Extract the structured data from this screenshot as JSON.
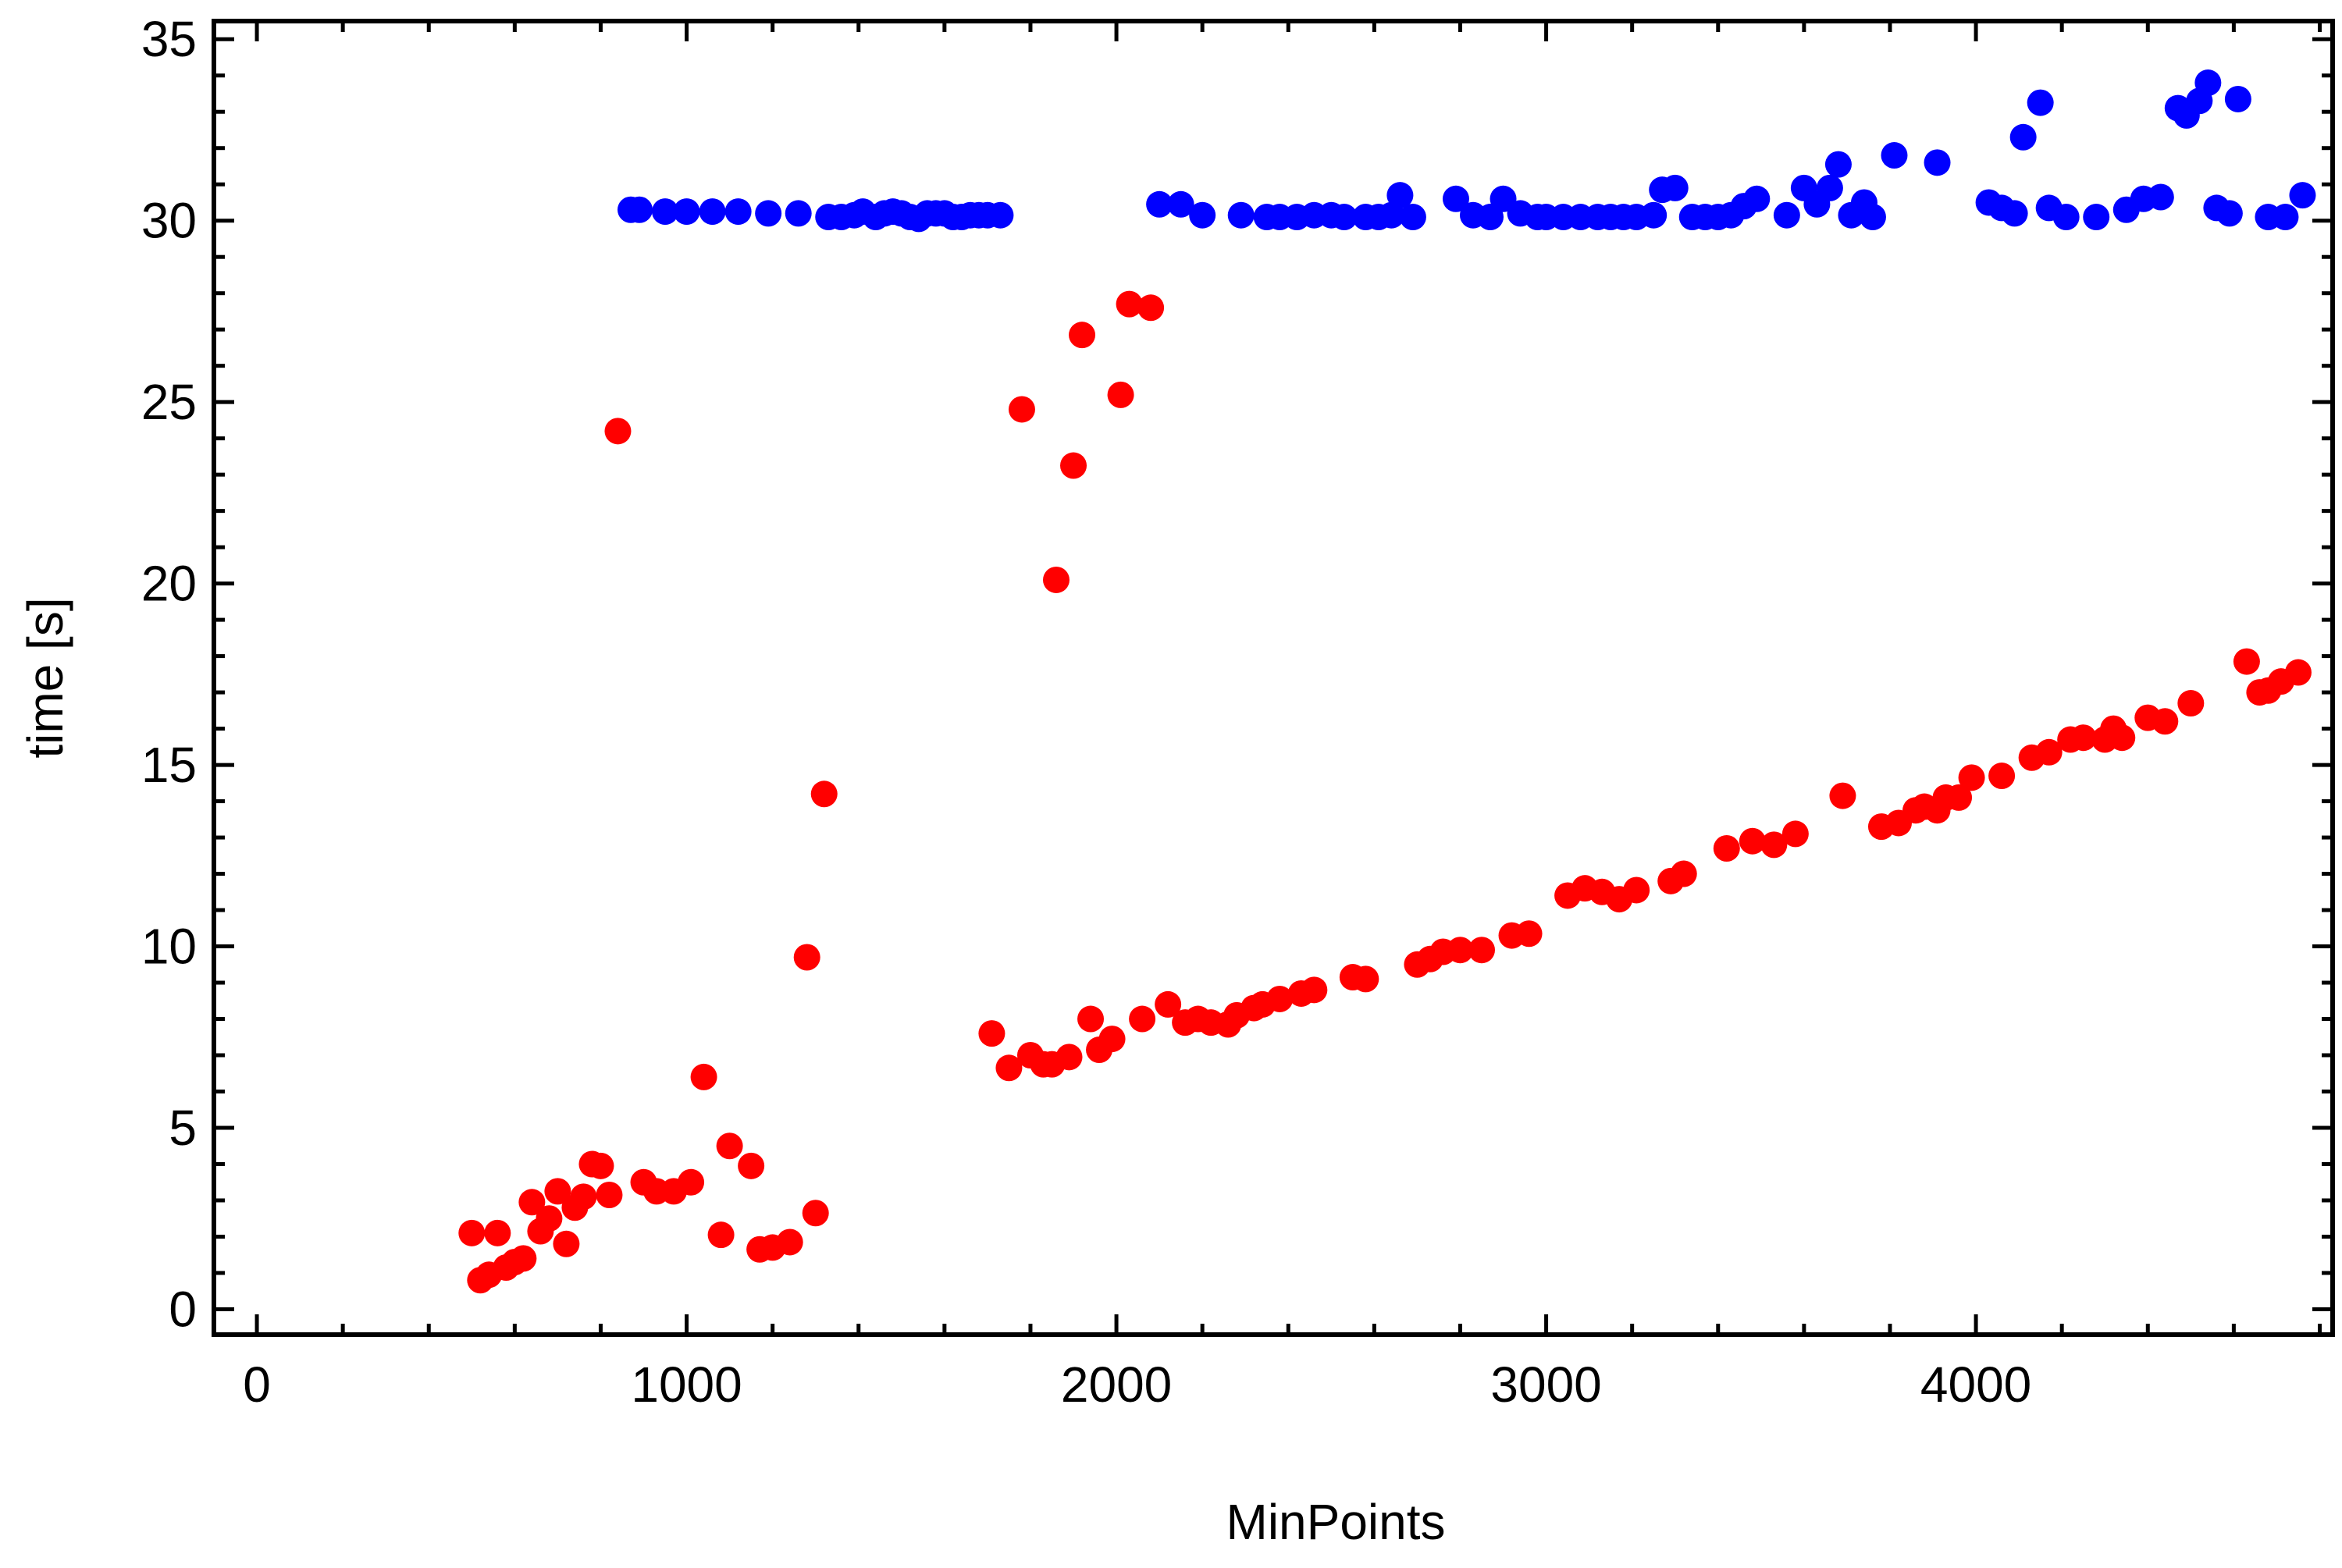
{
  "chart_data": {
    "type": "scatter",
    "title": "",
    "xlabel": "MinPoints",
    "ylabel": "time [s]",
    "xlim": [
      -100,
      4830
    ],
    "ylim": [
      -0.7,
      35.5
    ],
    "xticks": [
      0,
      1000,
      2000,
      3000,
      4000
    ],
    "xtick_labels": [
      "0",
      "1000",
      "2000",
      "3000",
      "4000"
    ],
    "yticks": [
      0,
      5,
      10,
      15,
      20,
      25,
      30,
      35
    ],
    "ytick_labels": [
      "0",
      "5",
      "10",
      "15",
      "20",
      "25",
      "30",
      "35"
    ],
    "grid": false,
    "legend": "none",
    "series": [
      {
        "color": "#0000ff",
        "points": [
          [
            870,
            30.3
          ],
          [
            890,
            30.3
          ],
          [
            950,
            30.25
          ],
          [
            1000,
            30.25
          ],
          [
            1060,
            30.25
          ],
          [
            1120,
            30.25
          ],
          [
            1190,
            30.2
          ],
          [
            1260,
            30.2
          ],
          [
            1330,
            30.1
          ],
          [
            1360,
            30.1
          ],
          [
            1390,
            30.15
          ],
          [
            1410,
            30.25
          ],
          [
            1440,
            30.1
          ],
          [
            1460,
            30.2
          ],
          [
            1480,
            30.25
          ],
          [
            1500,
            30.2
          ],
          [
            1520,
            30.1
          ],
          [
            1540,
            30.05
          ],
          [
            1560,
            30.2
          ],
          [
            1580,
            30.2
          ],
          [
            1600,
            30.2
          ],
          [
            1620,
            30.1
          ],
          [
            1640,
            30.1
          ],
          [
            1660,
            30.15
          ],
          [
            1680,
            30.15
          ],
          [
            1700,
            30.15
          ],
          [
            1730,
            30.15
          ],
          [
            2100,
            30.45
          ],
          [
            2150,
            30.45
          ],
          [
            2200,
            30.15
          ],
          [
            2290,
            30.15
          ],
          [
            2350,
            30.1
          ],
          [
            2380,
            30.1
          ],
          [
            2420,
            30.1
          ],
          [
            2460,
            30.15
          ],
          [
            2500,
            30.15
          ],
          [
            2530,
            30.1
          ],
          [
            2580,
            30.1
          ],
          [
            2610,
            30.1
          ],
          [
            2640,
            30.15
          ],
          [
            2660,
            30.7
          ],
          [
            2690,
            30.1
          ],
          [
            2790,
            30.6
          ],
          [
            2830,
            30.15
          ],
          [
            2870,
            30.1
          ],
          [
            2900,
            30.6
          ],
          [
            2940,
            30.2
          ],
          [
            2980,
            30.1
          ],
          [
            3000,
            30.1
          ],
          [
            3040,
            30.1
          ],
          [
            3080,
            30.1
          ],
          [
            3120,
            30.1
          ],
          [
            3150,
            30.1
          ],
          [
            3180,
            30.1
          ],
          [
            3210,
            30.1
          ],
          [
            3250,
            30.15
          ],
          [
            3270,
            30.85
          ],
          [
            3300,
            30.9
          ],
          [
            3340,
            30.1
          ],
          [
            3370,
            30.1
          ],
          [
            3400,
            30.1
          ],
          [
            3430,
            30.15
          ],
          [
            3460,
            30.4
          ],
          [
            3490,
            30.6
          ],
          [
            3560,
            30.15
          ],
          [
            3600,
            30.9
          ],
          [
            3630,
            30.45
          ],
          [
            3660,
            30.9
          ],
          [
            3680,
            31.55
          ],
          [
            3710,
            30.15
          ],
          [
            3740,
            30.5
          ],
          [
            3760,
            30.1
          ],
          [
            3810,
            31.8
          ],
          [
            3910,
            31.6
          ],
          [
            4030,
            30.5
          ],
          [
            4060,
            30.35
          ],
          [
            4090,
            30.2
          ],
          [
            4110,
            32.3
          ],
          [
            4150,
            33.25
          ],
          [
            4170,
            30.35
          ],
          [
            4210,
            30.1
          ],
          [
            4280,
            30.1
          ],
          [
            4350,
            30.3
          ],
          [
            4390,
            30.6
          ],
          [
            4430,
            30.65
          ],
          [
            4470,
            33.1
          ],
          [
            4490,
            32.9
          ],
          [
            4520,
            33.3
          ],
          [
            4540,
            33.8
          ],
          [
            4560,
            30.35
          ],
          [
            4590,
            30.2
          ],
          [
            4610,
            33.35
          ],
          [
            4680,
            30.1
          ],
          [
            4720,
            30.1
          ],
          [
            4760,
            30.7
          ]
        ]
      },
      {
        "color": "#ff0000",
        "points": [
          [
            500,
            2.1
          ],
          [
            520,
            0.8
          ],
          [
            540,
            0.95
          ],
          [
            560,
            2.1
          ],
          [
            580,
            1.15
          ],
          [
            600,
            1.3
          ],
          [
            620,
            1.4
          ],
          [
            640,
            2.95
          ],
          [
            660,
            2.15
          ],
          [
            680,
            2.5
          ],
          [
            700,
            3.25
          ],
          [
            720,
            1.8
          ],
          [
            740,
            2.8
          ],
          [
            760,
            3.1
          ],
          [
            780,
            4.0
          ],
          [
            800,
            3.95
          ],
          [
            820,
            3.15
          ],
          [
            840,
            24.2
          ],
          [
            900,
            3.5
          ],
          [
            930,
            3.25
          ],
          [
            970,
            3.25
          ],
          [
            1010,
            3.5
          ],
          [
            1040,
            6.4
          ],
          [
            1080,
            2.05
          ],
          [
            1100,
            4.5
          ],
          [
            1150,
            3.95
          ],
          [
            1170,
            1.65
          ],
          [
            1200,
            1.7
          ],
          [
            1240,
            1.85
          ],
          [
            1280,
            9.7
          ],
          [
            1300,
            2.65
          ],
          [
            1320,
            14.2
          ],
          [
            1710,
            7.6
          ],
          [
            1750,
            6.65
          ],
          [
            1780,
            24.8
          ],
          [
            1800,
            7.0
          ],
          [
            1830,
            6.75
          ],
          [
            1850,
            6.75
          ],
          [
            1860,
            20.1
          ],
          [
            1890,
            6.95
          ],
          [
            1900,
            23.25
          ],
          [
            1920,
            26.85
          ],
          [
            1940,
            8.0
          ],
          [
            1960,
            7.15
          ],
          [
            1990,
            7.45
          ],
          [
            2010,
            25.2
          ],
          [
            2030,
            27.7
          ],
          [
            2060,
            8.0
          ],
          [
            2080,
            27.6
          ],
          [
            2120,
            8.4
          ],
          [
            2160,
            7.9
          ],
          [
            2190,
            8.0
          ],
          [
            2220,
            7.9
          ],
          [
            2260,
            7.85
          ],
          [
            2280,
            8.1
          ],
          [
            2320,
            8.3
          ],
          [
            2340,
            8.4
          ],
          [
            2380,
            8.55
          ],
          [
            2430,
            8.7
          ],
          [
            2460,
            8.8
          ],
          [
            2550,
            9.15
          ],
          [
            2580,
            9.1
          ],
          [
            2700,
            9.5
          ],
          [
            2730,
            9.65
          ],
          [
            2760,
            9.85
          ],
          [
            2800,
            9.9
          ],
          [
            2850,
            9.9
          ],
          [
            2920,
            10.3
          ],
          [
            2960,
            10.35
          ],
          [
            3050,
            11.4
          ],
          [
            3090,
            11.6
          ],
          [
            3130,
            11.5
          ],
          [
            3170,
            11.3
          ],
          [
            3210,
            11.55
          ],
          [
            3290,
            11.8
          ],
          [
            3320,
            12.0
          ],
          [
            3420,
            12.7
          ],
          [
            3480,
            12.9
          ],
          [
            3530,
            12.8
          ],
          [
            3580,
            13.1
          ],
          [
            3690,
            14.15
          ],
          [
            3780,
            13.3
          ],
          [
            3820,
            13.4
          ],
          [
            3860,
            13.75
          ],
          [
            3880,
            13.85
          ],
          [
            3910,
            13.75
          ],
          [
            3930,
            14.1
          ],
          [
            3960,
            14.1
          ],
          [
            3990,
            14.65
          ],
          [
            4060,
            14.7
          ],
          [
            4130,
            15.2
          ],
          [
            4170,
            15.35
          ],
          [
            4220,
            15.7
          ],
          [
            4250,
            15.75
          ],
          [
            4300,
            15.7
          ],
          [
            4320,
            16.0
          ],
          [
            4340,
            15.75
          ],
          [
            4400,
            16.3
          ],
          [
            4440,
            16.2
          ],
          [
            4500,
            16.7
          ],
          [
            4630,
            17.85
          ],
          [
            4660,
            17.0
          ],
          [
            4680,
            17.05
          ],
          [
            4710,
            17.3
          ],
          [
            4750,
            17.55
          ]
        ]
      }
    ]
  }
}
